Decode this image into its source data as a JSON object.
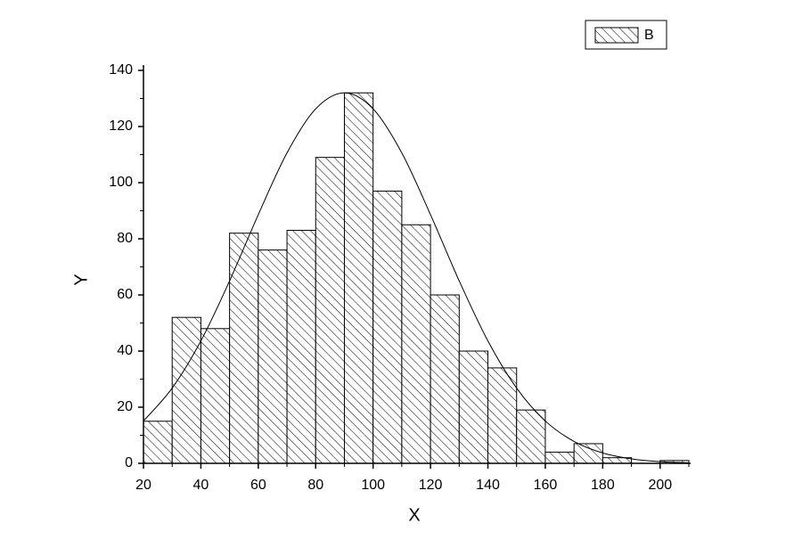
{
  "chart_data": {
    "type": "histogram",
    "x_label": "X",
    "y_label": "Y",
    "bins": [
      20,
      30,
      40,
      50,
      60,
      70,
      80,
      90,
      100,
      110,
      120,
      130,
      140,
      150,
      160,
      170,
      180,
      190,
      200,
      210
    ],
    "series": [
      {
        "name": "B",
        "color": "#000000",
        "values": [
          15,
          52,
          48,
          82,
          76,
          83,
          109,
          132,
          97,
          85,
          60,
          40,
          34,
          19,
          4,
          7,
          2,
          0,
          1
        ]
      }
    ],
    "fit": {
      "x": [
        20,
        30,
        40,
        50,
        60,
        70,
        80,
        90,
        100,
        110,
        120,
        130,
        140,
        150,
        160,
        170,
        180,
        190,
        200,
        210
      ],
      "y": [
        15.1,
        26.8,
        43.6,
        65.0,
        88.6,
        110.6,
        126.3,
        132,
        126.3,
        110.6,
        88.6,
        65.0,
        43.6,
        26.8,
        15.1,
        7.8,
        3.7,
        1.6,
        0.6,
        0.2
      ]
    },
    "xlim": [
      20,
      210
    ],
    "ylim": [
      0,
      140
    ],
    "xticks": [
      20,
      40,
      60,
      80,
      100,
      120,
      140,
      160,
      180,
      200
    ],
    "yticks": [
      0,
      20,
      40,
      60,
      80,
      100,
      120,
      140
    ],
    "xticks_minor": [
      30,
      50,
      70,
      90,
      110,
      130,
      150,
      170,
      190,
      210
    ],
    "yticks_minor": [
      10,
      30,
      50,
      70,
      90,
      110,
      130
    ],
    "legend": "top-right"
  }
}
